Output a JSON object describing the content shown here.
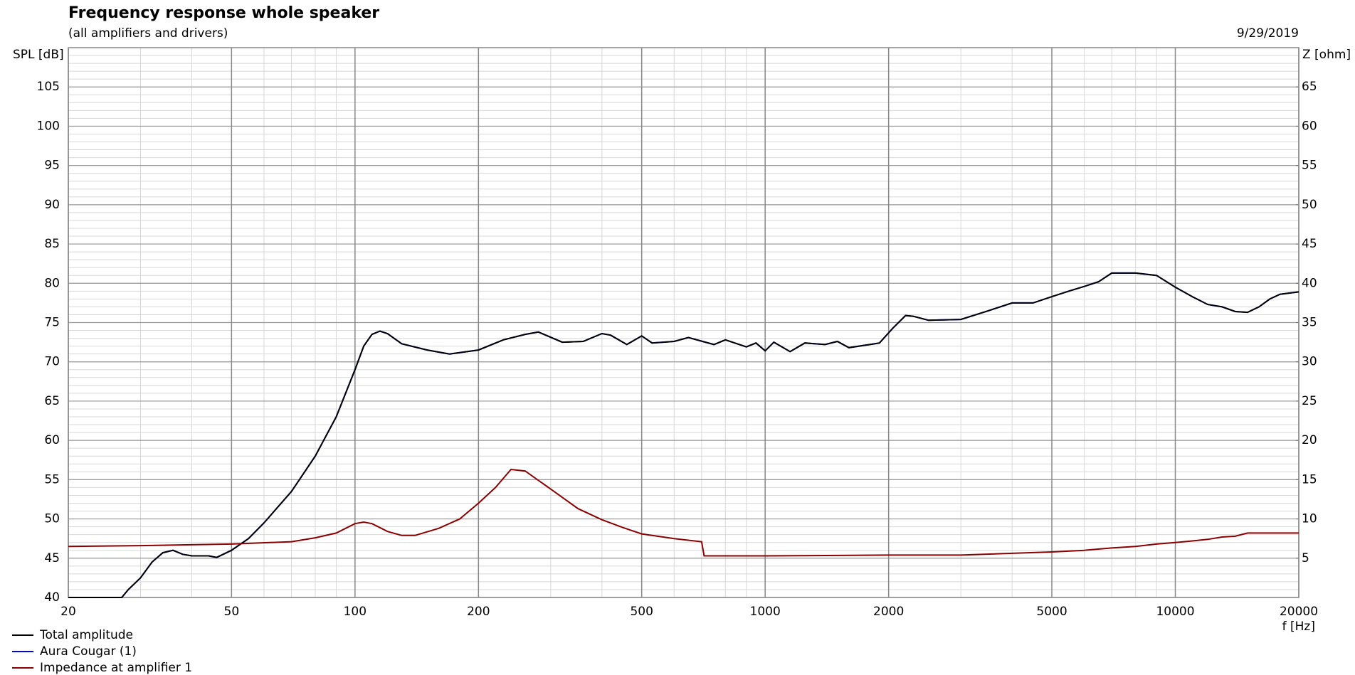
{
  "chart_data": {
    "type": "line",
    "title": "Frequency response whole speaker",
    "subtitle": "(all amplifiers and drivers)",
    "date": "9/29/2019",
    "y_label": "SPL [dB]",
    "y2_label": "Z [ohm]",
    "x_label": "f [Hz]",
    "xlog": true,
    "grid": true,
    "legend": "bottom-left",
    "xlim": [
      20,
      20000
    ],
    "xticks": [
      20,
      50,
      100,
      200,
      500,
      1000,
      2000,
      5000,
      10000,
      20000
    ],
    "ylim": [
      40,
      110
    ],
    "yticks": [
      40,
      45,
      50,
      55,
      60,
      65,
      70,
      75,
      80,
      85,
      90,
      95,
      100,
      105
    ],
    "y2lim": [
      0,
      70
    ],
    "y2ticks": [
      5,
      10,
      15,
      20,
      25,
      30,
      35,
      40,
      45,
      50,
      55,
      60,
      65
    ],
    "series": [
      {
        "name": "Total amplitude",
        "color": "#000000",
        "x": [
          20,
          27,
          28,
          30,
          32,
          34,
          36,
          38,
          40,
          44,
          46,
          50,
          55,
          60,
          70,
          80,
          90,
          100,
          105,
          110,
          115,
          120,
          130,
          150,
          170,
          200,
          230,
          260,
          280,
          320,
          360,
          400,
          420,
          460,
          500,
          530,
          600,
          650,
          750,
          800,
          900,
          950,
          1000,
          1050,
          1150,
          1250,
          1400,
          1500,
          1600,
          1800,
          1900,
          2050,
          2200,
          2300,
          2500,
          3000,
          3500,
          4000,
          4500,
          5000,
          5500,
          6000,
          6500,
          7000,
          8000,
          9000,
          10000,
          11000,
          12000,
          13000,
          14000,
          15000,
          16000,
          17000,
          18000,
          20000
        ],
        "values": [
          40,
          40,
          41,
          42.5,
          44.5,
          45.7,
          46,
          45.5,
          45.3,
          45.3,
          45.1,
          46,
          47.5,
          49.5,
          53.5,
          58,
          63,
          69,
          72,
          73.5,
          73.9,
          73.6,
          72.3,
          71.5,
          71,
          71.5,
          72.8,
          73.5,
          73.8,
          72.5,
          72.6,
          73.6,
          73.4,
          72.2,
          73.3,
          72.4,
          72.6,
          73.1,
          72.2,
          72.8,
          71.9,
          72.4,
          71.4,
          72.5,
          71.3,
          72.4,
          72.2,
          72.6,
          71.8,
          72.2,
          72.4,
          74.3,
          75.9,
          75.8,
          75.3,
          75.4,
          76.5,
          77.5,
          77.5,
          78.3,
          79,
          79.6,
          80.2,
          81.3,
          81.3,
          81,
          79.5,
          78.3,
          77.3,
          77,
          76.4,
          76.3,
          77,
          78,
          78.6,
          78.9
        ]
      },
      {
        "name": "Aura Cougar (1)",
        "color": "#0000ff",
        "x": [
          20,
          27,
          28,
          30,
          32,
          34,
          36,
          38,
          40,
          44,
          46,
          50,
          55,
          60,
          70,
          80,
          90,
          100,
          105,
          110,
          115,
          120,
          130,
          150,
          170,
          200,
          230,
          260,
          280,
          320,
          360,
          400,
          420,
          460,
          500,
          530,
          600,
          650,
          750,
          800,
          900,
          950,
          1000,
          1050,
          1150,
          1250,
          1400,
          1500,
          1600,
          1800,
          1900,
          2050,
          2200,
          2300,
          2500,
          3000,
          3500,
          4000,
          4500,
          5000,
          5500,
          6000,
          6500,
          7000,
          8000,
          9000,
          10000,
          11000,
          12000,
          13000,
          14000,
          15000,
          16000,
          17000,
          18000,
          20000
        ],
        "values": [
          40,
          40,
          41,
          42.5,
          44.5,
          45.7,
          46,
          45.5,
          45.3,
          45.3,
          45.1,
          46,
          47.5,
          49.5,
          53.5,
          58,
          63,
          69,
          72,
          73.5,
          73.9,
          73.6,
          72.3,
          71.5,
          71,
          71.5,
          72.8,
          73.5,
          73.8,
          72.5,
          72.6,
          73.6,
          73.4,
          72.2,
          73.3,
          72.4,
          72.6,
          73.1,
          72.2,
          72.8,
          71.9,
          72.4,
          71.4,
          72.5,
          71.3,
          72.4,
          72.2,
          72.6,
          71.8,
          72.2,
          72.4,
          74.3,
          75.9,
          75.8,
          75.3,
          75.4,
          76.5,
          77.5,
          77.5,
          78.3,
          79,
          79.6,
          80.2,
          81.3,
          81.3,
          81,
          79.5,
          78.3,
          77.3,
          77,
          76.4,
          76.3,
          77,
          78,
          78.6,
          78.9
        ]
      },
      {
        "name": "Impedance at amplifier 1",
        "color": "#8b0000",
        "axis": "y2",
        "x": [
          20,
          30,
          50,
          70,
          80,
          90,
          100,
          105,
          110,
          120,
          130,
          140,
          160,
          180,
          200,
          220,
          240,
          260,
          300,
          350,
          400,
          450,
          500,
          600,
          700,
          710,
          1000,
          2000,
          3000,
          5000,
          6000,
          7000,
          8000,
          9000,
          10000,
          11000,
          12000,
          13000,
          14000,
          15000,
          20000
        ],
        "values": [
          6.5,
          6.6,
          6.8,
          7.1,
          7.6,
          8.2,
          9.4,
          9.6,
          9.4,
          8.4,
          7.9,
          7.9,
          8.8,
          10,
          12,
          14,
          16.3,
          16.1,
          13.8,
          11.3,
          9.9,
          8.9,
          8.1,
          7.5,
          7.1,
          5.3,
          5.3,
          5.4,
          5.4,
          5.8,
          6,
          6.3,
          6.5,
          6.8,
          7,
          7.2,
          7.4,
          7.7,
          7.8,
          8.2,
          8.2
        ]
      }
    ]
  }
}
